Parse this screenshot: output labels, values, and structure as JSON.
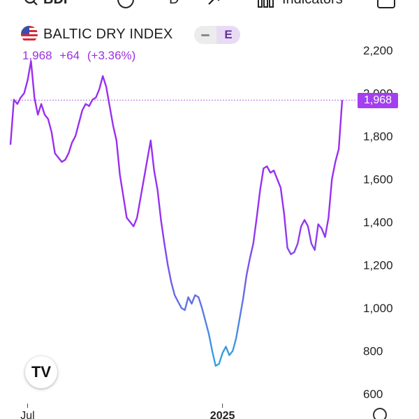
{
  "toolbar": {
    "symbol": "BDI",
    "interval": "D",
    "indicators_label": "Indicators",
    "icons": [
      "search-icon",
      "info-icon",
      "drawing-icon",
      "indicators-icon",
      "fullscreen-icon"
    ]
  },
  "legend": {
    "title": "BALTIC DRY INDEX",
    "flag_icon": "us-flag-icon",
    "pill_label": "E",
    "last": "1,968",
    "change": "+64",
    "change_pct": "(+3.36%)",
    "value_color": "#9b30e0"
  },
  "price_badge": "1,968",
  "brand": "TV",
  "chart_data": {
    "type": "line",
    "title": "BALTIC DRY INDEX",
    "ylim": [
      550,
      2250
    ],
    "y_ticks": [
      600,
      800,
      1000,
      1200,
      1400,
      1600,
      1800,
      2000,
      2200
    ],
    "y_tick_labels": [
      "600",
      "800",
      "1,000",
      "1,200",
      "1,400",
      "1,600",
      "1,800",
      "2,000",
      "2,200"
    ],
    "x_tick_labels": [
      "Jul",
      "2025"
    ],
    "x_tick_index": [
      5,
      62
    ],
    "last_price_line": 1968,
    "grid": false,
    "line_colors": [
      "#9a2ff0",
      "#2fa9dd"
    ],
    "series": [
      {
        "values": [
          1760,
          1970,
          1950,
          1980,
          2000,
          2060,
          2150,
          1980,
          1900,
          1950,
          1900,
          1880,
          1820,
          1720,
          1700,
          1680,
          1690,
          1720,
          1770,
          1800,
          1860,
          1920,
          1950,
          1940,
          1970,
          1980,
          2020,
          2080,
          2030,
          1940,
          1850,
          1780,
          1620,
          1520,
          1420,
          1400,
          1380,
          1420,
          1510,
          1600,
          1690,
          1780,
          1640,
          1550,
          1410,
          1300,
          1200,
          1120,
          1060,
          1030,
          1000,
          990,
          1050,
          1020,
          1060,
          1050,
          1000,
          940,
          880,
          800,
          730,
          740,
          790,
          820,
          780,
          800,
          860,
          950,
          1040,
          1150,
          1230,
          1300,
          1420,
          1550,
          1650,
          1660,
          1630,
          1640,
          1600,
          1560,
          1440,
          1280,
          1250,
          1260,
          1300,
          1380,
          1410,
          1380,
          1300,
          1270,
          1390,
          1370,
          1330,
          1420,
          1600,
          1680,
          1740,
          1968
        ]
      }
    ]
  }
}
